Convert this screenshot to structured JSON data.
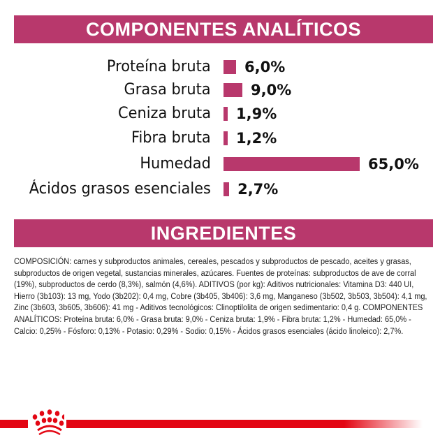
{
  "analytic_title": "COMPONENTES ANALÍTICOS",
  "ingredients_title": "INGREDIENTES",
  "colors": {
    "accent": "#b8386c",
    "brand_red": "#e30613"
  },
  "chart_data": {
    "type": "bar",
    "orientation": "horizontal",
    "title": "COMPONENTES ANALÍTICOS",
    "categories": [
      "Proteína bruta",
      "Grasa bruta",
      "Ceniza bruta",
      "Fibra bruta",
      "Humedad",
      "Ácidos grasos esenciales"
    ],
    "values": [
      6.0,
      9.0,
      1.9,
      1.2,
      65.0,
      2.7
    ],
    "labels": [
      "6,0%",
      "9,0%",
      "1,9%",
      "1,2%",
      "65,0%",
      "2,7%"
    ],
    "unit": "%",
    "grid": false
  },
  "ingredients_text": "COMPOSICIÓN: carnes y subproductos animales, cereales, pescados y subproductos de pescado, aceites y grasas, subproductos de origen vegetal, sustancias minerales, azúcares. Fuentes de proteínas: subproductos de ave de corral (19%), subproductos de cerdo (8,3%), salmón (4,6%). ADITIVOS (por kg): Aditivos nutricionales: Vitamina D3: 440 UI, Hierro (3b103): 13 mg, Yodo (3b202): 0,4 mg, Cobre (3b405, 3b406): 3,6 mg, Manganeso (3b502, 3b503, 3b504): 4,1 mg, Zinc (3b603, 3b605, 3b606): 41 mg - Aditivos tecnológicos: Clinoptilolita de origen sedimentario: 0,4 g. COMPONENTES ANALÍTICOS: Proteína bruta: 6,0% - Grasa bruta: 9,0% - Ceniza bruta: 1,9% - Fibra bruta: 1,2% - Humedad: 65,0% - Calcio: 0,25% - Fósforo: 0,13% - Potasio: 0,29% - Sodio: 0,15% - Ácidos grasos esenciales (ácido linoleico): 2,7%.",
  "logo": {
    "icon": "royal-canin-crown-icon"
  }
}
